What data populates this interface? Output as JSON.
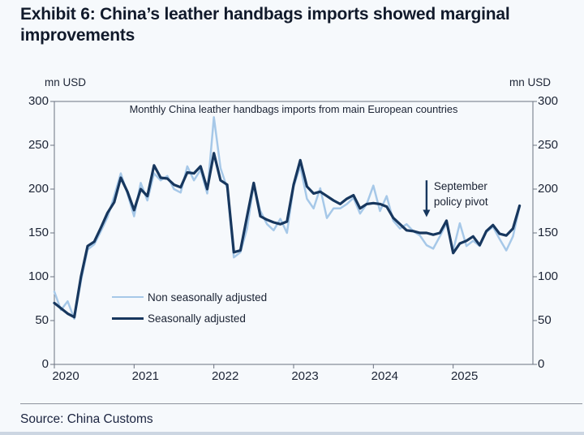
{
  "page": {
    "title": "Exhibit 6: China’s leather handbags imports showed marginal improvements",
    "source": "Source: China Customs"
  },
  "chart": {
    "left_axis_unit": "mn USD",
    "right_axis_unit": "mn USD",
    "subtitle": "Monthly China leather handbags imports from main European countries",
    "annotation_line1": "September",
    "annotation_line2": "policy pivot",
    "legend": [
      {
        "label": "Non seasonally adjusted",
        "color": "#a6c8e8"
      },
      {
        "label": "Seasonally adjusted",
        "color": "#17375e"
      }
    ],
    "axis_color": "#6b7280",
    "text_color": "#1c2435"
  },
  "chart_data": {
    "type": "line",
    "title": "Monthly China leather handbags imports from main European countries",
    "xlabel": "",
    "ylabel": "mn USD",
    "ylim": [
      0,
      300
    ],
    "yticks": [
      0,
      50,
      100,
      150,
      200,
      250,
      300
    ],
    "x_start": "2020-01",
    "x_end": "2025-11",
    "x_domain_months": 72,
    "x_year_labels": [
      "2020",
      "2021",
      "2022",
      "2023",
      "2024",
      "2025"
    ],
    "legend_position": "inside-lower-left",
    "grid": false,
    "series": [
      {
        "name": "Non seasonally adjusted",
        "color": "#a6c8e8",
        "width": 2.5,
        "values": [
          83,
          62,
          72,
          52,
          95,
          131,
          137,
          152,
          168,
          192,
          218,
          195,
          169,
          207,
          187,
          218,
          210,
          215,
          200,
          196,
          226,
          210,
          222,
          195,
          282,
          224,
          201,
          122,
          128,
          155,
          205,
          175,
          160,
          153,
          166,
          150,
          203,
          226,
          189,
          178,
          201,
          167,
          178,
          178,
          183,
          190,
          172,
          183,
          204,
          175,
          192,
          164,
          155,
          160,
          152,
          147,
          136,
          132,
          146,
          161,
          130,
          161,
          135,
          141,
          135,
          151,
          157,
          143,
          130,
          146,
          180
        ]
      },
      {
        "name": "Seasonally adjusted",
        "color": "#17375e",
        "width": 3.2,
        "values": [
          70,
          64,
          58,
          54,
          100,
          135,
          140,
          156,
          173,
          185,
          213,
          197,
          176,
          200,
          192,
          227,
          213,
          212,
          205,
          202,
          219,
          218,
          226,
          200,
          241,
          210,
          205,
          128,
          130,
          169,
          207,
          169,
          165,
          162,
          160,
          163,
          205,
          233,
          203,
          195,
          197,
          192,
          187,
          183,
          189,
          193,
          178,
          183,
          184,
          183,
          180,
          167,
          160,
          153,
          152,
          150,
          150,
          148,
          150,
          164,
          127,
          138,
          141,
          146,
          136,
          152,
          159,
          149,
          147,
          155,
          181
        ]
      }
    ],
    "annotation": {
      "text": "September policy pivot",
      "x_month": "2024-09",
      "x_month_index": 56,
      "arrow_from_value": 210,
      "arrow_to_value": 168
    }
  }
}
